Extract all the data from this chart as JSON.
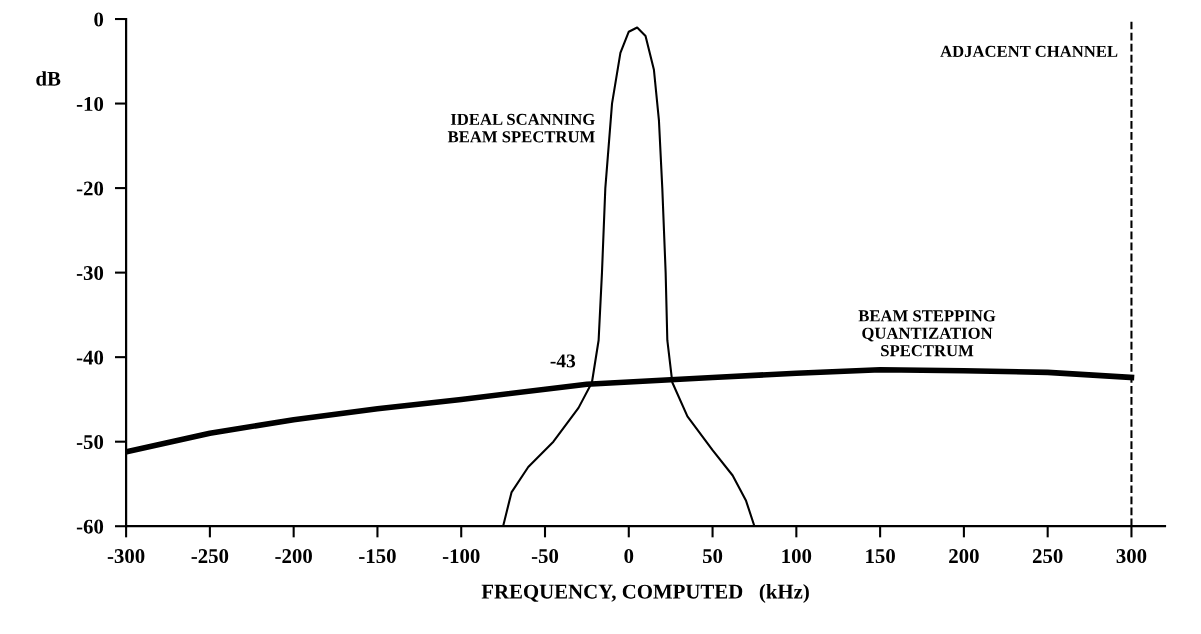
{
  "chart_data": {
    "type": "line",
    "xlabel": "FREQUENCY, COMPUTED   (kHz)",
    "ylabel": "dB",
    "xlim": [
      -300,
      320
    ],
    "ylim": [
      -60,
      0
    ],
    "xticks": [
      -300,
      -250,
      -200,
      -150,
      -100,
      -50,
      0,
      50,
      100,
      150,
      200,
      250,
      300
    ],
    "yticks": [
      -60,
      -50,
      -40,
      -30,
      -20,
      -10,
      0
    ],
    "grid": false,
    "legend": false,
    "marker": "none",
    "line_style": "solid",
    "series": [
      {
        "color": "#000000",
        "x": [
          -75,
          -70,
          -60,
          -45,
          -30,
          -22,
          -18,
          -16,
          -14,
          -10,
          -5,
          0,
          5,
          10,
          15,
          18,
          20,
          22,
          23,
          26,
          35,
          50,
          62,
          70,
          75
        ],
        "values": [
          -60,
          -56,
          -53,
          -50,
          -46,
          -43,
          -38,
          -30,
          -20,
          -10,
          -4,
          -1.5,
          -1,
          -2,
          -6,
          -12,
          -20,
          -30,
          -38,
          -43,
          -47,
          -51,
          -54,
          -57,
          -60
        ]
      },
      {
        "color": "#000000",
        "x": [
          -300,
          -250,
          -200,
          -150,
          -100,
          -25,
          50,
          100,
          150,
          200,
          250,
          300
        ],
        "values": [
          -51.2,
          -49,
          -47.4,
          -46.1,
          -45,
          -43.2,
          -42.4,
          -41.9,
          -41.5,
          -41.6,
          -41.8,
          -42.4
        ]
      }
    ],
    "ref_lines": [
      {
        "axis": "x",
        "value": 300,
        "label": "ADJACENT CHANNEL",
        "color": "#000000",
        "line_style": "dashed"
      }
    ],
    "annotations": [
      "IDEAL SCANNING\nBEAM SPECTRUM",
      "BEAM STEPPING\nQUANTIZATION\nSPECTRUM",
      {
        "text": "-43",
        "x": -25,
        "y": -43
      }
    ]
  }
}
